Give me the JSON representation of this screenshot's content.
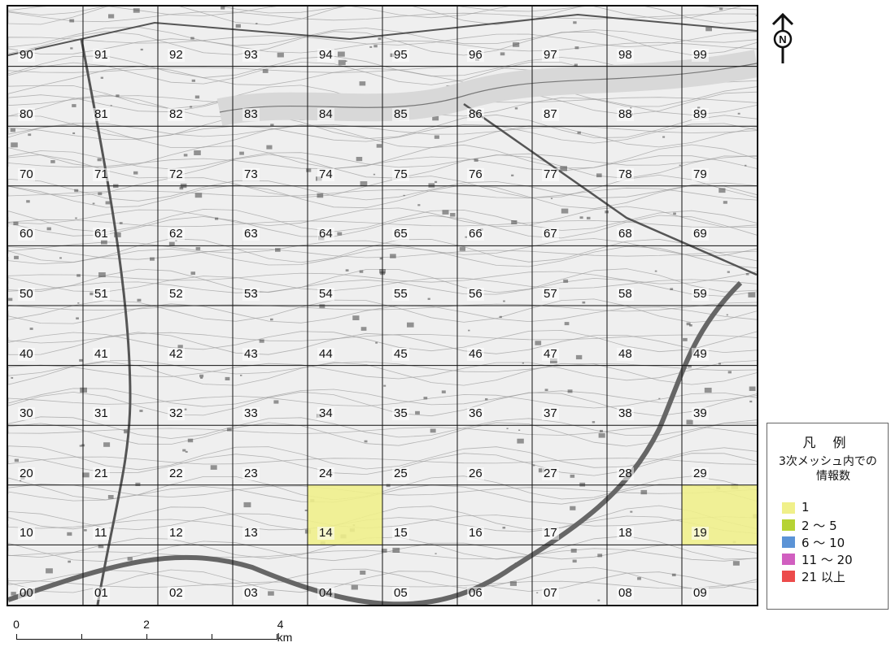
{
  "map": {
    "grid": {
      "rows": [
        "9",
        "8",
        "7",
        "6",
        "5",
        "4",
        "3",
        "2",
        "1",
        "0"
      ],
      "cols": [
        "0",
        "1",
        "2",
        "3",
        "4",
        "5",
        "6",
        "7",
        "8",
        "9"
      ]
    },
    "highlighted_cells": [
      {
        "label": "14",
        "class": "1"
      },
      {
        "label": "19",
        "class": "1"
      }
    ],
    "legend": {
      "title": "凡 例",
      "subtitle_line1": "3次メッシュ内での",
      "subtitle_line2": "情報数",
      "items": [
        {
          "label": "1",
          "color": "#f0f08a"
        },
        {
          "label": "2 ～ 5",
          "color": "#b6d334"
        },
        {
          "label": "6 ～ 10",
          "color": "#5b93d6"
        },
        {
          "label": "11 ～ 20",
          "color": "#d15fc0"
        },
        {
          "label": "21 以上",
          "color": "#ec4b4b"
        }
      ]
    },
    "north_arrow": {
      "icon": "north-arrow-icon",
      "label": "N"
    },
    "scale_bar": {
      "labels": [
        "0",
        "2",
        "4 km"
      ]
    }
  }
}
